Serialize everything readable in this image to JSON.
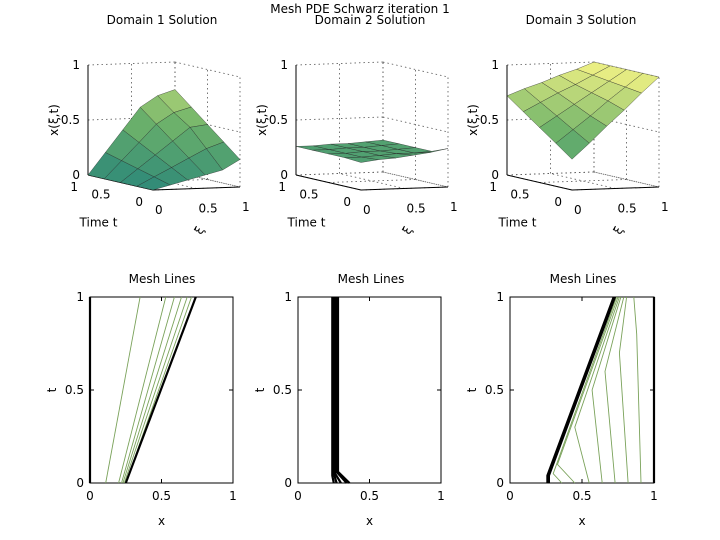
{
  "figure": {
    "title": "Mesh PDE Schwarz iteration 1",
    "colors": {
      "surface_low": "#2f8a78",
      "surface_mid": "#6fb36a",
      "surface_high": "#f2f285",
      "mesh_line_light": "#7aa25a",
      "mesh_line_dark": "#000000",
      "axis": "#000000",
      "background": "#ffffff"
    }
  },
  "chart_data": [
    {
      "type": "surface",
      "title": "Domain 1 Solution",
      "zlabel": "x(ξ,t)",
      "ylabel": "Time t",
      "xlabel": "ξ",
      "zlim": [
        0,
        1
      ],
      "xlim": [
        0,
        1
      ],
      "ylim": [
        0,
        1
      ],
      "z_ticks": [
        "0",
        "0.5",
        "1"
      ],
      "y_ticks": [
        "0",
        "0.5",
        "1"
      ],
      "x_ticks": [
        "0",
        "0.5",
        "1"
      ],
      "xi": [
        0,
        0.2,
        0.4,
        0.6,
        0.8,
        1
      ],
      "t": [
        0,
        0.25,
        0.5,
        0.75,
        1
      ],
      "z": [
        [
          0.0,
          0.04,
          0.08,
          0.12,
          0.16,
          0.25
        ],
        [
          0.0,
          0.08,
          0.16,
          0.24,
          0.32,
          0.375
        ],
        [
          0.0,
          0.12,
          0.24,
          0.36,
          0.48,
          0.5
        ],
        [
          0.0,
          0.16,
          0.32,
          0.48,
          0.58,
          0.625
        ],
        [
          0.0,
          0.2,
          0.4,
          0.6,
          0.7,
          0.75
        ]
      ]
    },
    {
      "type": "surface",
      "title": "Domain 2 Solution",
      "zlabel": "x(ξ,t)",
      "ylabel": "Time t",
      "xlabel": "ξ",
      "zlim": [
        0,
        1
      ],
      "xlim": [
        0,
        1
      ],
      "ylim": [
        0,
        1
      ],
      "z_ticks": [
        "0",
        "0.5",
        "1"
      ],
      "y_ticks": [
        "0",
        "0.5",
        "1"
      ],
      "x_ticks": [
        "0",
        "0.5",
        "1"
      ],
      "xi": [
        0,
        0.2,
        0.4,
        0.6,
        0.8,
        1
      ],
      "t": [
        0,
        0.25,
        0.5,
        0.75,
        1
      ],
      "z": [
        [
          0.25,
          0.27,
          0.28,
          0.3,
          0.32,
          0.35
        ],
        [
          0.26,
          0.26,
          0.27,
          0.28,
          0.28,
          0.29
        ],
        [
          0.26,
          0.26,
          0.27,
          0.27,
          0.28,
          0.29
        ],
        [
          0.26,
          0.26,
          0.27,
          0.27,
          0.28,
          0.29
        ],
        [
          0.26,
          0.26,
          0.27,
          0.27,
          0.28,
          0.29
        ]
      ]
    },
    {
      "type": "surface",
      "title": "Domain 3 Solution",
      "zlabel": "x(ξ,t)",
      "ylabel": "Time t",
      "xlabel": "ξ",
      "zlim": [
        0,
        1
      ],
      "xlim": [
        0,
        1
      ],
      "ylim": [
        0,
        1
      ],
      "z_ticks": [
        "0",
        "0.5",
        "1"
      ],
      "y_ticks": [
        "0",
        "0.5",
        "1"
      ],
      "x_ticks": [
        "0",
        "0.5",
        "1"
      ],
      "xi": [
        0,
        0.2,
        0.4,
        0.6,
        0.8,
        1
      ],
      "t": [
        0,
        0.25,
        0.5,
        0.75,
        1
      ],
      "z": [
        [
          0.28,
          0.42,
          0.57,
          0.71,
          0.86,
          1.0
        ],
        [
          0.39,
          0.51,
          0.63,
          0.76,
          0.88,
          1.0
        ],
        [
          0.5,
          0.6,
          0.7,
          0.8,
          0.9,
          1.0
        ],
        [
          0.61,
          0.69,
          0.77,
          0.84,
          0.92,
          1.0
        ],
        [
          0.72,
          0.78,
          0.83,
          0.89,
          0.94,
          1.0
        ]
      ]
    },
    {
      "type": "line",
      "title": "Mesh Lines",
      "xlabel": "x",
      "ylabel": "t",
      "xlim": [
        0,
        1
      ],
      "ylim": [
        0,
        1
      ],
      "x_ticks": [
        "0",
        "0.5",
        "1"
      ],
      "y_ticks": [
        "0",
        "0.5",
        "1"
      ],
      "series": [
        {
          "x": [
            0.0,
            0.0
          ],
          "t": [
            0,
            1
          ],
          "emphasis": 1
        },
        {
          "x": [
            0.11,
            0.35
          ],
          "t": [
            0,
            1
          ],
          "emphasis": 0
        },
        {
          "x": [
            0.2,
            0.53
          ],
          "t": [
            0,
            1
          ],
          "emphasis": 0
        },
        {
          "x": [
            0.22,
            0.59
          ],
          "t": [
            0,
            1
          ],
          "emphasis": 0
        },
        {
          "x": [
            0.23,
            0.64
          ],
          "t": [
            0,
            1
          ],
          "emphasis": 0
        },
        {
          "x": [
            0.24,
            0.68
          ],
          "t": [
            0,
            1
          ],
          "emphasis": 0
        },
        {
          "x": [
            0.25,
            0.71
          ],
          "t": [
            0,
            1
          ],
          "emphasis": 0
        },
        {
          "x": [
            0.25,
            0.74
          ],
          "t": [
            0,
            1
          ],
          "emphasis": 1
        }
      ]
    },
    {
      "type": "line",
      "title": "Mesh Lines",
      "xlabel": "x",
      "ylabel": "t",
      "xlim": [
        0,
        1
      ],
      "ylim": [
        0,
        1
      ],
      "x_ticks": [
        "0",
        "0.5",
        "1"
      ],
      "y_ticks": [
        "0",
        "0.5",
        "1"
      ],
      "series": [
        {
          "x": [
            0.25,
            0.24,
            0.24
          ],
          "t": [
            0,
            0.04,
            1
          ],
          "emphasis": 1
        },
        {
          "x": [
            0.27,
            0.25,
            0.25
          ],
          "t": [
            0,
            0.05,
            1
          ],
          "emphasis": 1
        },
        {
          "x": [
            0.3,
            0.26,
            0.26
          ],
          "t": [
            0,
            0.05,
            1
          ],
          "emphasis": 1
        },
        {
          "x": [
            0.34,
            0.27,
            0.27
          ],
          "t": [
            0,
            0.06,
            1
          ],
          "emphasis": 1
        },
        {
          "x": [
            0.36,
            0.28,
            0.28
          ],
          "t": [
            0,
            0.06,
            1
          ],
          "emphasis": 1
        }
      ]
    },
    {
      "type": "line",
      "title": "Mesh Lines",
      "xlabel": "x",
      "ylabel": "t",
      "xlim": [
        0,
        1
      ],
      "ylim": [
        0,
        1
      ],
      "x_ticks": [
        "0",
        "0.5",
        "1"
      ],
      "y_ticks": [
        "0",
        "0.5",
        "1"
      ],
      "series": [
        {
          "x": [
            0.26,
            0.26,
            0.72
          ],
          "t": [
            0,
            0.04,
            1
          ],
          "emphasis": 1
        },
        {
          "x": [
            0.27,
            0.27,
            0.73
          ],
          "t": [
            0,
            0.04,
            1
          ],
          "emphasis": 1
        },
        {
          "x": [
            0.36,
            0.3,
            0.74
          ],
          "t": [
            0,
            0.05,
            1
          ],
          "emphasis": 0
        },
        {
          "x": [
            0.45,
            0.33,
            0.75
          ],
          "t": [
            0,
            0.1,
            1
          ],
          "emphasis": 0
        },
        {
          "x": [
            0.55,
            0.45,
            0.76
          ],
          "t": [
            0,
            0.3,
            1
          ],
          "emphasis": 0
        },
        {
          "x": [
            0.64,
            0.57,
            0.77
          ],
          "t": [
            0,
            0.5,
            1
          ],
          "emphasis": 0
        },
        {
          "x": [
            0.73,
            0.66,
            0.79
          ],
          "t": [
            0,
            0.6,
            1
          ],
          "emphasis": 0
        },
        {
          "x": [
            0.82,
            0.76,
            0.81
          ],
          "t": [
            0,
            0.7,
            1
          ],
          "emphasis": 0
        },
        {
          "x": [
            0.91,
            0.88,
            0.86
          ],
          "t": [
            0,
            0.8,
            1
          ],
          "emphasis": 0
        },
        {
          "x": [
            1.0,
            1.0,
            1.0
          ],
          "t": [
            0,
            0.5,
            1
          ],
          "emphasis": 1
        }
      ]
    }
  ]
}
